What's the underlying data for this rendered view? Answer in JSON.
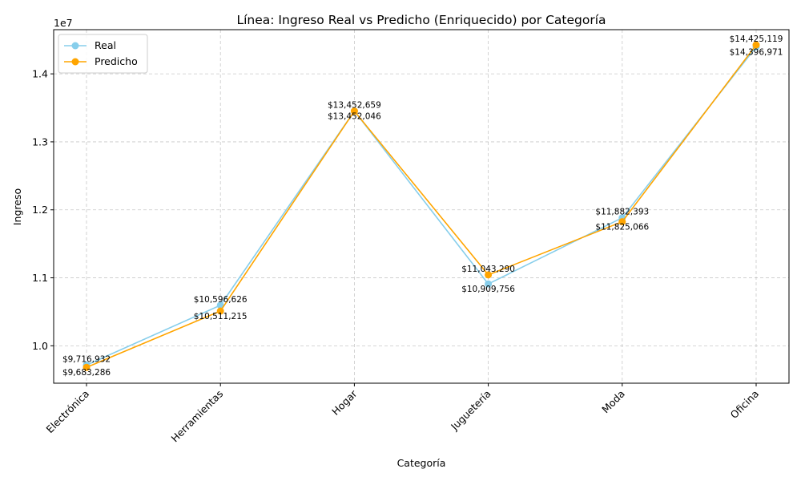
{
  "chart_data": {
    "type": "line",
    "title": "Línea: Ingreso Real vs Predicho (Enriquecido) por Categoría",
    "xlabel": "Categoría",
    "ylabel": "Ingreso",
    "y_offset_label": "1e7",
    "categories": [
      "Electrónica",
      "Herramientas",
      "Hogar",
      "Juguetería",
      "Moda",
      "Oficina"
    ],
    "series": [
      {
        "name": "Real",
        "color": "#87ceeb",
        "values": [
          9716932,
          10596626,
          13452659,
          10909756,
          11882393,
          14396971
        ],
        "labels": [
          "$9,716,932",
          "$10,596,626",
          "$13,452,659",
          "$10,909,756",
          "$11,882,393",
          "$14,396,971"
        ]
      },
      {
        "name": "Predicho",
        "color": "#ffa500",
        "values": [
          9683286,
          10511215,
          13452046,
          11043290,
          11825066,
          14425119
        ],
        "labels": [
          "$9,683,286",
          "$10,511,215",
          "$13,452,046",
          "$11,043,290",
          "$11,825,066",
          "$14,425,119"
        ]
      }
    ],
    "y_ticks": [
      10000000,
      11000000,
      12000000,
      13000000,
      14000000
    ],
    "y_tick_labels": [
      "1.0",
      "1.1",
      "1.2",
      "1.3",
      "1.4"
    ],
    "ylim": [
      9450000,
      14650000
    ],
    "grid": true,
    "legend_position": "top-left"
  }
}
